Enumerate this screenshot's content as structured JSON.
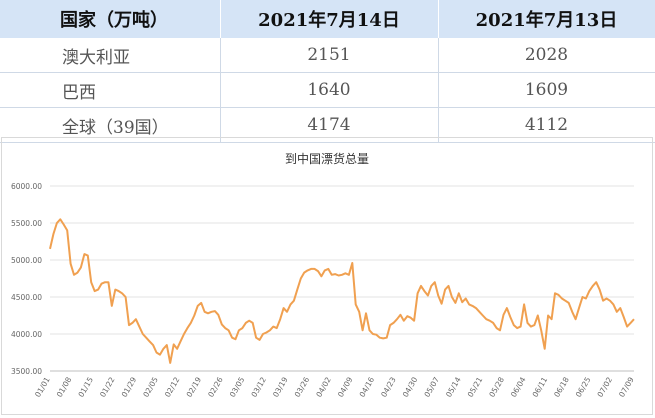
{
  "table": {
    "headers": [
      "国家（万吨）",
      "2021年7月14日",
      "2021年7月13日"
    ],
    "rows": [
      [
        "澳大利亚",
        "2151",
        "2028"
      ],
      [
        "巴西",
        "1640",
        "1609"
      ],
      [
        "全球（39国）",
        "4174",
        "4112"
      ]
    ]
  },
  "chart_data": {
    "type": "line",
    "title": "到中国漂货总量",
    "ylim": [
      3500,
      6000
    ],
    "yticks": [
      "6000.00",
      "5500.00",
      "5000.00",
      "4500.00",
      "4000.00",
      "3500.00"
    ],
    "xticks": [
      "01/01",
      "01/08",
      "01/15",
      "01/22",
      "01/29",
      "02/05",
      "02/12",
      "02/19",
      "02/26",
      "03/05",
      "03/12",
      "03/19",
      "03/26",
      "04/02",
      "04/09",
      "04/16",
      "04/23",
      "04/30",
      "05/07",
      "05/14",
      "05/21",
      "05/28",
      "06/04",
      "06/11",
      "06/18",
      "06/25",
      "07/02",
      "07/09"
    ],
    "color": "#f0a050",
    "series": [
      {
        "values": [
          5150,
          5350,
          5500,
          5550,
          5480,
          5400,
          4950,
          4800,
          4830,
          4900,
          5080,
          5060,
          4700,
          4580,
          4600,
          4680,
          4700,
          4700,
          4380,
          4600,
          4580,
          4550,
          4500,
          4120,
          4150,
          4200,
          4100,
          4000,
          3950,
          3900,
          3850,
          3750,
          3720,
          3800,
          3850,
          3610,
          3860,
          3800,
          3900,
          4000,
          4080,
          4150,
          4250,
          4380,
          4420,
          4300,
          4280,
          4300,
          4310,
          4260,
          4130,
          4080,
          4050,
          3950,
          3930,
          4050,
          4080,
          4150,
          4180,
          4150,
          3950,
          3920,
          4000,
          4020,
          4050,
          4100,
          4080,
          4200,
          4350,
          4300,
          4400,
          4450,
          4600,
          4750,
          4830,
          4860,
          4880,
          4880,
          4850,
          4780,
          4860,
          4880,
          4800,
          4810,
          4790,
          4800,
          4820,
          4800,
          4960,
          4400,
          4300,
          4050,
          4280,
          4050,
          4000,
          3990,
          3950,
          3940,
          3950,
          4120,
          4150,
          4200,
          4260,
          4180,
          4240,
          4220,
          4180,
          4550,
          4650,
          4580,
          4520,
          4650,
          4700,
          4520,
          4410,
          4600,
          4650,
          4500,
          4420,
          4550,
          4430,
          4480,
          4400,
          4380,
          4350,
          4300,
          4250,
          4200,
          4180,
          4150,
          4080,
          4050,
          4260,
          4350,
          4230,
          4120,
          4080,
          4100,
          4400,
          4150,
          4100,
          4120,
          4250,
          4050,
          3800,
          4250,
          4200,
          4550,
          4530,
          4480,
          4450,
          4420,
          4300,
          4200,
          4350,
          4500,
          4480,
          4580,
          4650,
          4700,
          4600,
          4450,
          4480,
          4450,
          4400,
          4300,
          4350,
          4230,
          4100,
          4150,
          4200
        ]
      }
    ]
  }
}
